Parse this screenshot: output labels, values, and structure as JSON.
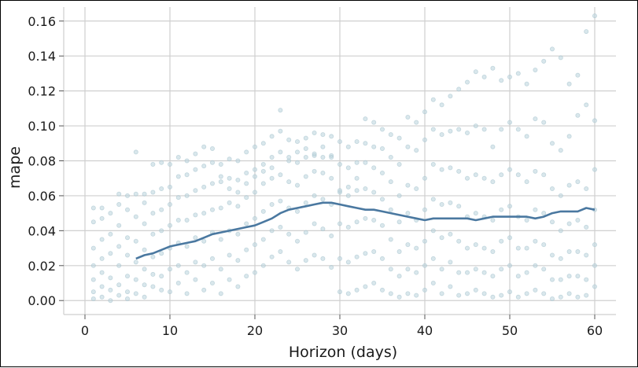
{
  "chart_data": {
    "type": "scatter",
    "xlabel": "Horizon (days)",
    "ylabel": "mape",
    "xlim": [
      -2.5,
      62.5
    ],
    "ylim": [
      -0.008,
      0.168
    ],
    "xticks": [
      0,
      10,
      20,
      30,
      40,
      50,
      60
    ],
    "xtick_labels": [
      "0",
      "10",
      "20",
      "30",
      "40",
      "50",
      "60"
    ],
    "yticks": [
      0.0,
      0.02,
      0.04,
      0.06,
      0.08,
      0.1,
      0.12,
      0.14,
      0.16
    ],
    "ytick_labels": [
      "0.00",
      "0.02",
      "0.04",
      "0.06",
      "0.08",
      "0.10",
      "0.12",
      "0.14",
      "0.16"
    ],
    "grid": true,
    "colors": {
      "points": "#b9d3dc",
      "line": "#4a78a0",
      "grid": "#cfcfcf"
    },
    "series": [
      {
        "type": "line",
        "x": [
          6,
          7,
          8,
          9,
          10,
          11,
          12,
          13,
          14,
          15,
          16,
          17,
          18,
          19,
          20,
          21,
          22,
          23,
          24,
          25,
          26,
          27,
          28,
          29,
          30,
          31,
          32,
          33,
          34,
          35,
          36,
          37,
          38,
          39,
          40,
          41,
          42,
          43,
          44,
          45,
          46,
          47,
          48,
          49,
          50,
          51,
          52,
          53,
          54,
          55,
          56,
          57,
          58,
          59,
          60
        ],
        "y": [
          0.024,
          0.026,
          0.027,
          0.029,
          0.031,
          0.032,
          0.033,
          0.034,
          0.036,
          0.038,
          0.039,
          0.04,
          0.041,
          0.042,
          0.043,
          0.045,
          0.047,
          0.05,
          0.052,
          0.053,
          0.054,
          0.055,
          0.056,
          0.056,
          0.055,
          0.054,
          0.053,
          0.052,
          0.052,
          0.051,
          0.05,
          0.049,
          0.048,
          0.047,
          0.046,
          0.047,
          0.047,
          0.047,
          0.047,
          0.047,
          0.046,
          0.047,
          0.048,
          0.048,
          0.048,
          0.048,
          0.048,
          0.047,
          0.048,
          0.05,
          0.051,
          0.051,
          0.051,
          0.053,
          0.052
        ]
      },
      {
        "type": "scatter",
        "x": [
          1,
          1,
          1,
          1,
          1,
          1,
          1,
          2,
          2,
          2,
          2,
          2,
          2,
          2,
          3,
          3,
          3,
          3,
          3,
          3,
          4,
          4,
          4,
          4,
          4,
          4,
          4,
          5,
          5,
          5,
          5,
          5,
          5,
          5,
          6,
          6,
          6,
          6,
          6,
          6,
          6,
          7,
          7,
          7,
          7,
          7,
          7,
          7,
          8,
          8,
          8,
          8,
          8,
          8,
          8,
          9,
          9,
          9,
          9,
          9,
          9,
          9,
          10,
          10,
          10,
          10,
          10,
          10,
          10,
          11,
          11,
          11,
          11,
          11,
          11,
          11,
          12,
          12,
          12,
          12,
          12,
          12,
          12,
          13,
          13,
          13,
          13,
          13,
          13,
          13,
          14,
          14,
          14,
          14,
          14,
          14,
          14,
          15,
          15,
          15,
          15,
          15,
          15,
          15,
          16,
          16,
          16,
          16,
          16,
          16,
          16,
          17,
          17,
          17,
          17,
          17,
          17,
          17,
          18,
          18,
          18,
          18,
          18,
          18,
          18,
          19,
          19,
          19,
          19,
          19,
          19,
          19,
          20,
          20,
          20,
          20,
          20,
          20,
          20,
          21,
          21,
          21,
          21,
          21,
          21,
          21,
          22,
          22,
          22,
          22,
          22,
          22,
          22,
          23,
          23,
          23,
          23,
          23,
          23,
          23,
          24,
          24,
          24,
          24,
          24,
          24,
          24,
          25,
          25,
          25,
          25,
          25,
          25,
          25,
          26,
          26,
          26,
          26,
          26,
          26,
          26,
          27,
          27,
          27,
          27,
          27,
          27,
          27,
          28,
          28,
          28,
          28,
          28,
          28,
          28,
          29,
          29,
          29,
          29,
          29,
          29,
          29,
          30,
          30,
          30,
          30,
          30,
          30,
          30,
          31,
          31,
          31,
          31,
          31,
          31,
          31,
          32,
          32,
          32,
          32,
          32,
          32,
          32,
          33,
          33,
          33,
          33,
          33,
          33,
          33,
          34,
          34,
          34,
          34,
          34,
          34,
          34,
          35,
          35,
          35,
          35,
          35,
          35,
          35,
          36,
          36,
          36,
          36,
          36,
          36,
          36,
          37,
          37,
          37,
          37,
          37,
          37,
          37,
          38,
          38,
          38,
          38,
          38,
          38,
          38,
          39,
          39,
          39,
          39,
          39,
          39,
          39,
          40,
          40,
          40,
          40,
          40,
          40,
          40,
          41,
          41,
          41,
          41,
          41,
          41,
          41,
          42,
          42,
          42,
          42,
          42,
          42,
          42,
          43,
          43,
          43,
          43,
          43,
          43,
          43,
          44,
          44,
          44,
          44,
          44,
          44,
          44,
          45,
          45,
          45,
          45,
          45,
          45,
          45,
          46,
          46,
          46,
          46,
          46,
          46,
          46,
          47,
          47,
          47,
          47,
          47,
          47,
          47,
          48,
          48,
          48,
          48,
          48,
          48,
          48,
          49,
          49,
          49,
          49,
          49,
          49,
          49,
          50,
          50,
          50,
          50,
          50,
          50,
          50,
          51,
          51,
          51,
          51,
          51,
          51,
          51,
          52,
          52,
          52,
          52,
          52,
          52,
          52,
          53,
          53,
          53,
          53,
          53,
          53,
          53,
          54,
          54,
          54,
          54,
          54,
          54,
          54,
          55,
          55,
          55,
          55,
          55,
          55,
          55,
          56,
          56,
          56,
          56,
          56,
          56,
          56,
          57,
          57,
          57,
          57,
          57,
          57,
          57,
          58,
          58,
          58,
          58,
          58,
          58,
          58,
          59,
          59,
          59,
          59,
          59,
          59,
          59,
          60,
          60,
          60,
          60,
          60,
          60,
          60
        ],
        "y": [
          0.001,
          0.005,
          0.012,
          0.02,
          0.03,
          0.045,
          0.053,
          0.002,
          0.008,
          0.016,
          0.024,
          0.035,
          0.047,
          0.053,
          0.0,
          0.006,
          0.013,
          0.027,
          0.038,
          0.05,
          0.003,
          0.009,
          0.02,
          0.031,
          0.043,
          0.055,
          0.061,
          0.001,
          0.005,
          0.014,
          0.026,
          0.036,
          0.052,
          0.06,
          0.004,
          0.012,
          0.022,
          0.034,
          0.048,
          0.061,
          0.085,
          0.002,
          0.009,
          0.018,
          0.029,
          0.044,
          0.056,
          0.061,
          0.008,
          0.015,
          0.025,
          0.038,
          0.05,
          0.062,
          0.078,
          0.006,
          0.014,
          0.027,
          0.04,
          0.052,
          0.064,
          0.079,
          0.005,
          0.018,
          0.03,
          0.043,
          0.055,
          0.065,
          0.078,
          0.01,
          0.02,
          0.033,
          0.046,
          0.059,
          0.071,
          0.082,
          0.004,
          0.016,
          0.031,
          0.046,
          0.06,
          0.072,
          0.08,
          0.012,
          0.022,
          0.036,
          0.049,
          0.063,
          0.075,
          0.084,
          0.006,
          0.02,
          0.034,
          0.05,
          0.065,
          0.077,
          0.088,
          0.01,
          0.024,
          0.039,
          0.052,
          0.067,
          0.079,
          0.087,
          0.004,
          0.018,
          0.035,
          0.053,
          0.068,
          0.078,
          0.071,
          0.012,
          0.026,
          0.04,
          0.056,
          0.07,
          0.081,
          0.064,
          0.008,
          0.023,
          0.038,
          0.054,
          0.069,
          0.08,
          0.062,
          0.014,
          0.029,
          0.044,
          0.059,
          0.073,
          0.085,
          0.067,
          0.016,
          0.032,
          0.047,
          0.062,
          0.075,
          0.088,
          0.071,
          0.02,
          0.035,
          0.051,
          0.067,
          0.078,
          0.09,
          0.074,
          0.025,
          0.04,
          0.055,
          0.07,
          0.082,
          0.094,
          0.076,
          0.028,
          0.042,
          0.057,
          0.072,
          0.085,
          0.097,
          0.109,
          0.022,
          0.038,
          0.053,
          0.068,
          0.08,
          0.092,
          0.082,
          0.018,
          0.034,
          0.051,
          0.066,
          0.079,
          0.091,
          0.085,
          0.023,
          0.039,
          0.056,
          0.071,
          0.082,
          0.093,
          0.087,
          0.026,
          0.044,
          0.06,
          0.074,
          0.083,
          0.096,
          0.084,
          0.024,
          0.041,
          0.058,
          0.073,
          0.082,
          0.095,
          0.088,
          0.019,
          0.037,
          0.055,
          0.07,
          0.083,
          0.094,
          0.082,
          0.005,
          0.024,
          0.044,
          0.062,
          0.078,
          0.091,
          0.063,
          0.004,
          0.022,
          0.042,
          0.06,
          0.076,
          0.088,
          0.065,
          0.006,
          0.025,
          0.045,
          0.063,
          0.079,
          0.091,
          0.07,
          0.008,
          0.027,
          0.047,
          0.064,
          0.079,
          0.09,
          0.104,
          0.01,
          0.028,
          0.046,
          0.062,
          0.076,
          0.088,
          0.102,
          0.006,
          0.024,
          0.043,
          0.058,
          0.073,
          0.087,
          0.098,
          0.004,
          0.018,
          0.035,
          0.052,
          0.068,
          0.082,
          0.095,
          0.002,
          0.014,
          0.028,
          0.045,
          0.06,
          0.078,
          0.093,
          0.004,
          0.018,
          0.032,
          0.05,
          0.066,
          0.088,
          0.105,
          0.003,
          0.016,
          0.03,
          0.046,
          0.064,
          0.086,
          0.102,
          0.006,
          0.02,
          0.034,
          0.052,
          0.07,
          0.092,
          0.108,
          0.01,
          0.024,
          0.04,
          0.058,
          0.078,
          0.098,
          0.115,
          0.004,
          0.018,
          0.036,
          0.055,
          0.075,
          0.095,
          0.112,
          0.008,
          0.022,
          0.038,
          0.056,
          0.076,
          0.097,
          0.117,
          0.003,
          0.016,
          0.034,
          0.054,
          0.074,
          0.098,
          0.121,
          0.004,
          0.016,
          0.03,
          0.048,
          0.07,
          0.096,
          0.125,
          0.006,
          0.018,
          0.032,
          0.05,
          0.072,
          0.1,
          0.131,
          0.004,
          0.016,
          0.03,
          0.048,
          0.07,
          0.098,
          0.128,
          0.002,
          0.014,
          0.028,
          0.046,
          0.068,
          0.088,
          0.133,
          0.003,
          0.018,
          0.034,
          0.052,
          0.072,
          0.098,
          0.126,
          0.005,
          0.02,
          0.036,
          0.054,
          0.075,
          0.102,
          0.128,
          0.002,
          0.014,
          0.03,
          0.048,
          0.072,
          0.098,
          0.13,
          0.004,
          0.016,
          0.03,
          0.046,
          0.068,
          0.094,
          0.124,
          0.006,
          0.02,
          0.034,
          0.052,
          0.074,
          0.104,
          0.132,
          0.004,
          0.018,
          0.032,
          0.05,
          0.072,
          0.102,
          0.137,
          0.001,
          0.012,
          0.026,
          0.045,
          0.064,
          0.09,
          0.144,
          0.002,
          0.012,
          0.024,
          0.04,
          0.06,
          0.086,
          0.139,
          0.004,
          0.014,
          0.028,
          0.044,
          0.066,
          0.094,
          0.124,
          0.002,
          0.014,
          0.028,
          0.046,
          0.068,
          0.106,
          0.129,
          0.003,
          0.012,
          0.026,
          0.042,
          0.064,
          0.112,
          0.154,
          0.008,
          0.02,
          0.032,
          0.052,
          0.075,
          0.103,
          0.163
        ]
      }
    ]
  }
}
